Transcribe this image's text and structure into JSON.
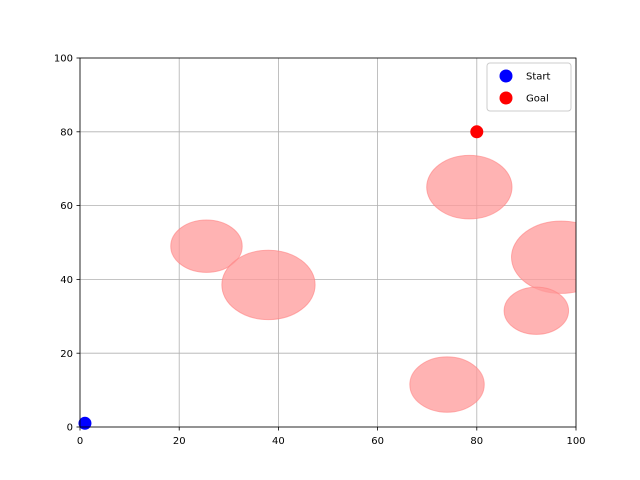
{
  "chart_data": {
    "type": "scatter",
    "title": "",
    "xlabel": "",
    "ylabel": "",
    "xlim": [
      0,
      100
    ],
    "ylim": [
      0,
      100
    ],
    "xticks": [
      0,
      20,
      40,
      60,
      80,
      100
    ],
    "yticks": [
      0,
      20,
      40,
      60,
      80,
      100
    ],
    "grid": true,
    "legend_placement": "top-right",
    "series": [
      {
        "name": "Start",
        "color": "#0000ff",
        "points": [
          {
            "x": 1,
            "y": 1
          }
        ]
      },
      {
        "name": "Goal",
        "color": "#ff0000",
        "points": [
          {
            "x": 80,
            "y": 80
          }
        ]
      }
    ],
    "obstacles": {
      "color": "#ff9999",
      "shape": "ellipse",
      "items": [
        {
          "x": 25.5,
          "y": 49,
          "rx": 7.2,
          "ry": 7.1
        },
        {
          "x": 38.0,
          "y": 38.5,
          "rx": 9.4,
          "ry": 9.4
        },
        {
          "x": 78.5,
          "y": 65.0,
          "rx": 8.6,
          "ry": 8.6
        },
        {
          "x": 97.0,
          "y": 46.0,
          "rx": 10.0,
          "ry": 9.8
        },
        {
          "x": 92.0,
          "y": 31.5,
          "rx": 6.5,
          "ry": 6.4
        },
        {
          "x": 74.0,
          "y": 11.5,
          "rx": 7.5,
          "ry": 7.5
        }
      ]
    }
  }
}
